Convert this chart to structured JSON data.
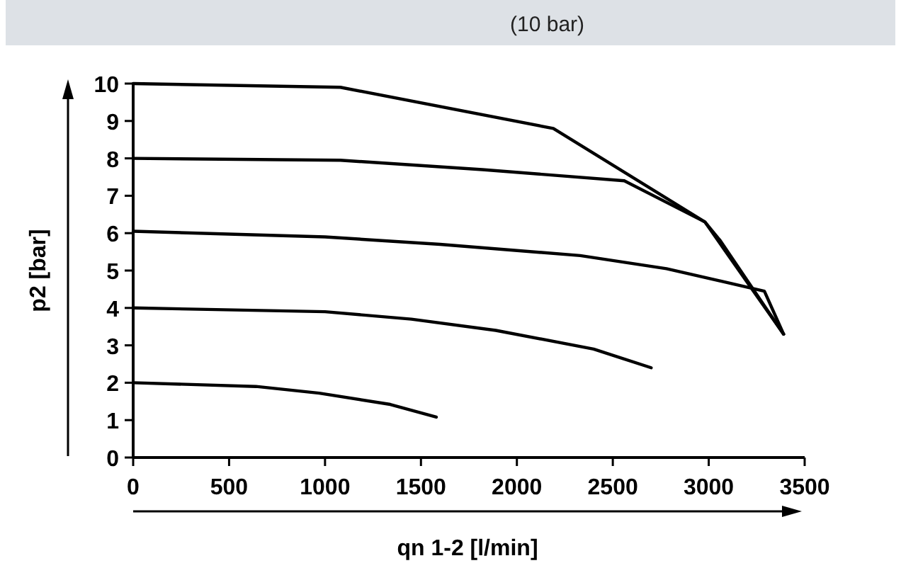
{
  "chart_data": {
    "type": "line",
    "title": "(10 bar)",
    "xlabel": "qn 1-2 [l/min]",
    "ylabel": "p2 [bar]",
    "xlim": [
      0,
      3500
    ],
    "xticks": [
      0,
      500,
      1000,
      1500,
      2000,
      2500,
      3000,
      3500
    ],
    "ylim": [
      0,
      10
    ],
    "yticks": [
      0,
      1,
      2,
      3,
      4,
      5,
      6,
      7,
      8,
      9,
      10
    ],
    "grid": false,
    "marker": "none",
    "line_style": "solid",
    "series": [
      {
        "color": "#000000",
        "x": [
          0,
          1080,
          2190,
          2980,
          3060,
          3390
        ],
        "values": [
          10,
          9.9,
          8.8,
          6.3,
          5.8,
          3.3
        ]
      },
      {
        "color": "#000000",
        "x": [
          0,
          1080,
          1820,
          2560,
          2980,
          3390
        ],
        "values": [
          8,
          7.95,
          7.7,
          7.4,
          6.3,
          3.3
        ]
      },
      {
        "color": "#000000",
        "x": [
          0,
          1000,
          1600,
          2330,
          2780,
          3290,
          3390
        ],
        "values": [
          6.05,
          5.9,
          5.7,
          5.4,
          5.05,
          4.45,
          3.3
        ]
      },
      {
        "color": "#000000",
        "x": [
          0,
          1000,
          1450,
          1890,
          2400,
          2700
        ],
        "values": [
          4,
          3.9,
          3.7,
          3.4,
          2.9,
          2.4
        ]
      },
      {
        "color": "#000000",
        "x": [
          0,
          640,
          970,
          1340,
          1580
        ],
        "values": [
          2,
          1.9,
          1.72,
          1.42,
          1.08
        ]
      }
    ]
  }
}
